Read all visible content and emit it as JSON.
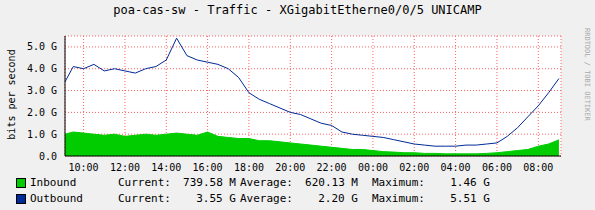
{
  "chart_data": {
    "type": "area",
    "title": "poa-cas-sw - Traffic - XGigabitEtherne0/0/5 UNICAMP",
    "y_label": "bits per second",
    "watermark": "RRDTOOL / TOBI OETIKER",
    "x": [
      9.1,
      9.5,
      10,
      10.5,
      11,
      11.5,
      12,
      12.5,
      13,
      13.5,
      14,
      14.5,
      15,
      15.5,
      16,
      16.5,
      17,
      17.5,
      18,
      18.5,
      19,
      19.5,
      20,
      20.5,
      21,
      21.5,
      22,
      22.5,
      23,
      23.5,
      24,
      24.5,
      25,
      25.5,
      26,
      26.5,
      27,
      27.5,
      28,
      28.5,
      29,
      29.5,
      30,
      30.5,
      31,
      31.5,
      32,
      32.5,
      33
    ],
    "xlim": [
      9.1,
      33.1
    ],
    "xticks": [
      {
        "value": 10,
        "label": "10:00"
      },
      {
        "value": 12,
        "label": "12:00"
      },
      {
        "value": 14,
        "label": "14:00"
      },
      {
        "value": 16,
        "label": "16:00"
      },
      {
        "value": 18,
        "label": "18:00"
      },
      {
        "value": 20,
        "label": "20:00"
      },
      {
        "value": 22,
        "label": "22:00"
      },
      {
        "value": 24,
        "label": "00:00"
      },
      {
        "value": 26,
        "label": "02:00"
      },
      {
        "value": 28,
        "label": "04:00"
      },
      {
        "value": 30,
        "label": "06:00"
      },
      {
        "value": 32,
        "label": "08:00"
      }
    ],
    "ylim": [
      0,
      5.5
    ],
    "yticks": [
      {
        "value": 0,
        "label": "0.0"
      },
      {
        "value": 1,
        "label": "1.0 G"
      },
      {
        "value": 2,
        "label": "2.0 G"
      },
      {
        "value": 3,
        "label": "3.0 G"
      },
      {
        "value": 4,
        "label": "4.0 G"
      },
      {
        "value": 5,
        "label": "5.0 G"
      }
    ],
    "grid": true,
    "stat_labels": [
      "Current:",
      "Average:",
      "Maximum:"
    ],
    "series": [
      {
        "name": "Inbound",
        "type": "area",
        "color": "#00cc00",
        "values": [
          1.0,
          1.1,
          1.05,
          1.0,
          0.95,
          1.0,
          0.9,
          0.95,
          1.0,
          0.95,
          1.0,
          1.05,
          1.0,
          0.95,
          1.1,
          0.9,
          0.85,
          0.8,
          0.8,
          0.7,
          0.7,
          0.65,
          0.6,
          0.55,
          0.5,
          0.45,
          0.4,
          0.35,
          0.3,
          0.3,
          0.25,
          0.2,
          0.18,
          0.15,
          0.15,
          0.12,
          0.12,
          0.1,
          0.1,
          0.1,
          0.1,
          0.12,
          0.15,
          0.2,
          0.25,
          0.3,
          0.45,
          0.55,
          0.74
        ],
        "stats": [
          "739.58 M",
          "620.13 M",
          "1.46 G"
        ]
      },
      {
        "name": "Outbound",
        "type": "line",
        "color": "#002a97",
        "values": [
          3.4,
          4.1,
          4.0,
          4.2,
          3.9,
          4.0,
          3.9,
          3.8,
          4.0,
          4.1,
          4.4,
          5.4,
          4.6,
          4.4,
          4.3,
          4.2,
          4.0,
          3.6,
          2.9,
          2.6,
          2.4,
          2.2,
          2.0,
          1.9,
          1.7,
          1.5,
          1.4,
          1.1,
          1.0,
          0.95,
          0.9,
          0.85,
          0.75,
          0.65,
          0.55,
          0.5,
          0.45,
          0.45,
          0.45,
          0.5,
          0.5,
          0.55,
          0.6,
          0.9,
          1.3,
          1.8,
          2.3,
          2.9,
          3.55
        ],
        "stats": [
          "3.55 G",
          "2.20 G",
          "5.51 G"
        ]
      }
    ]
  }
}
